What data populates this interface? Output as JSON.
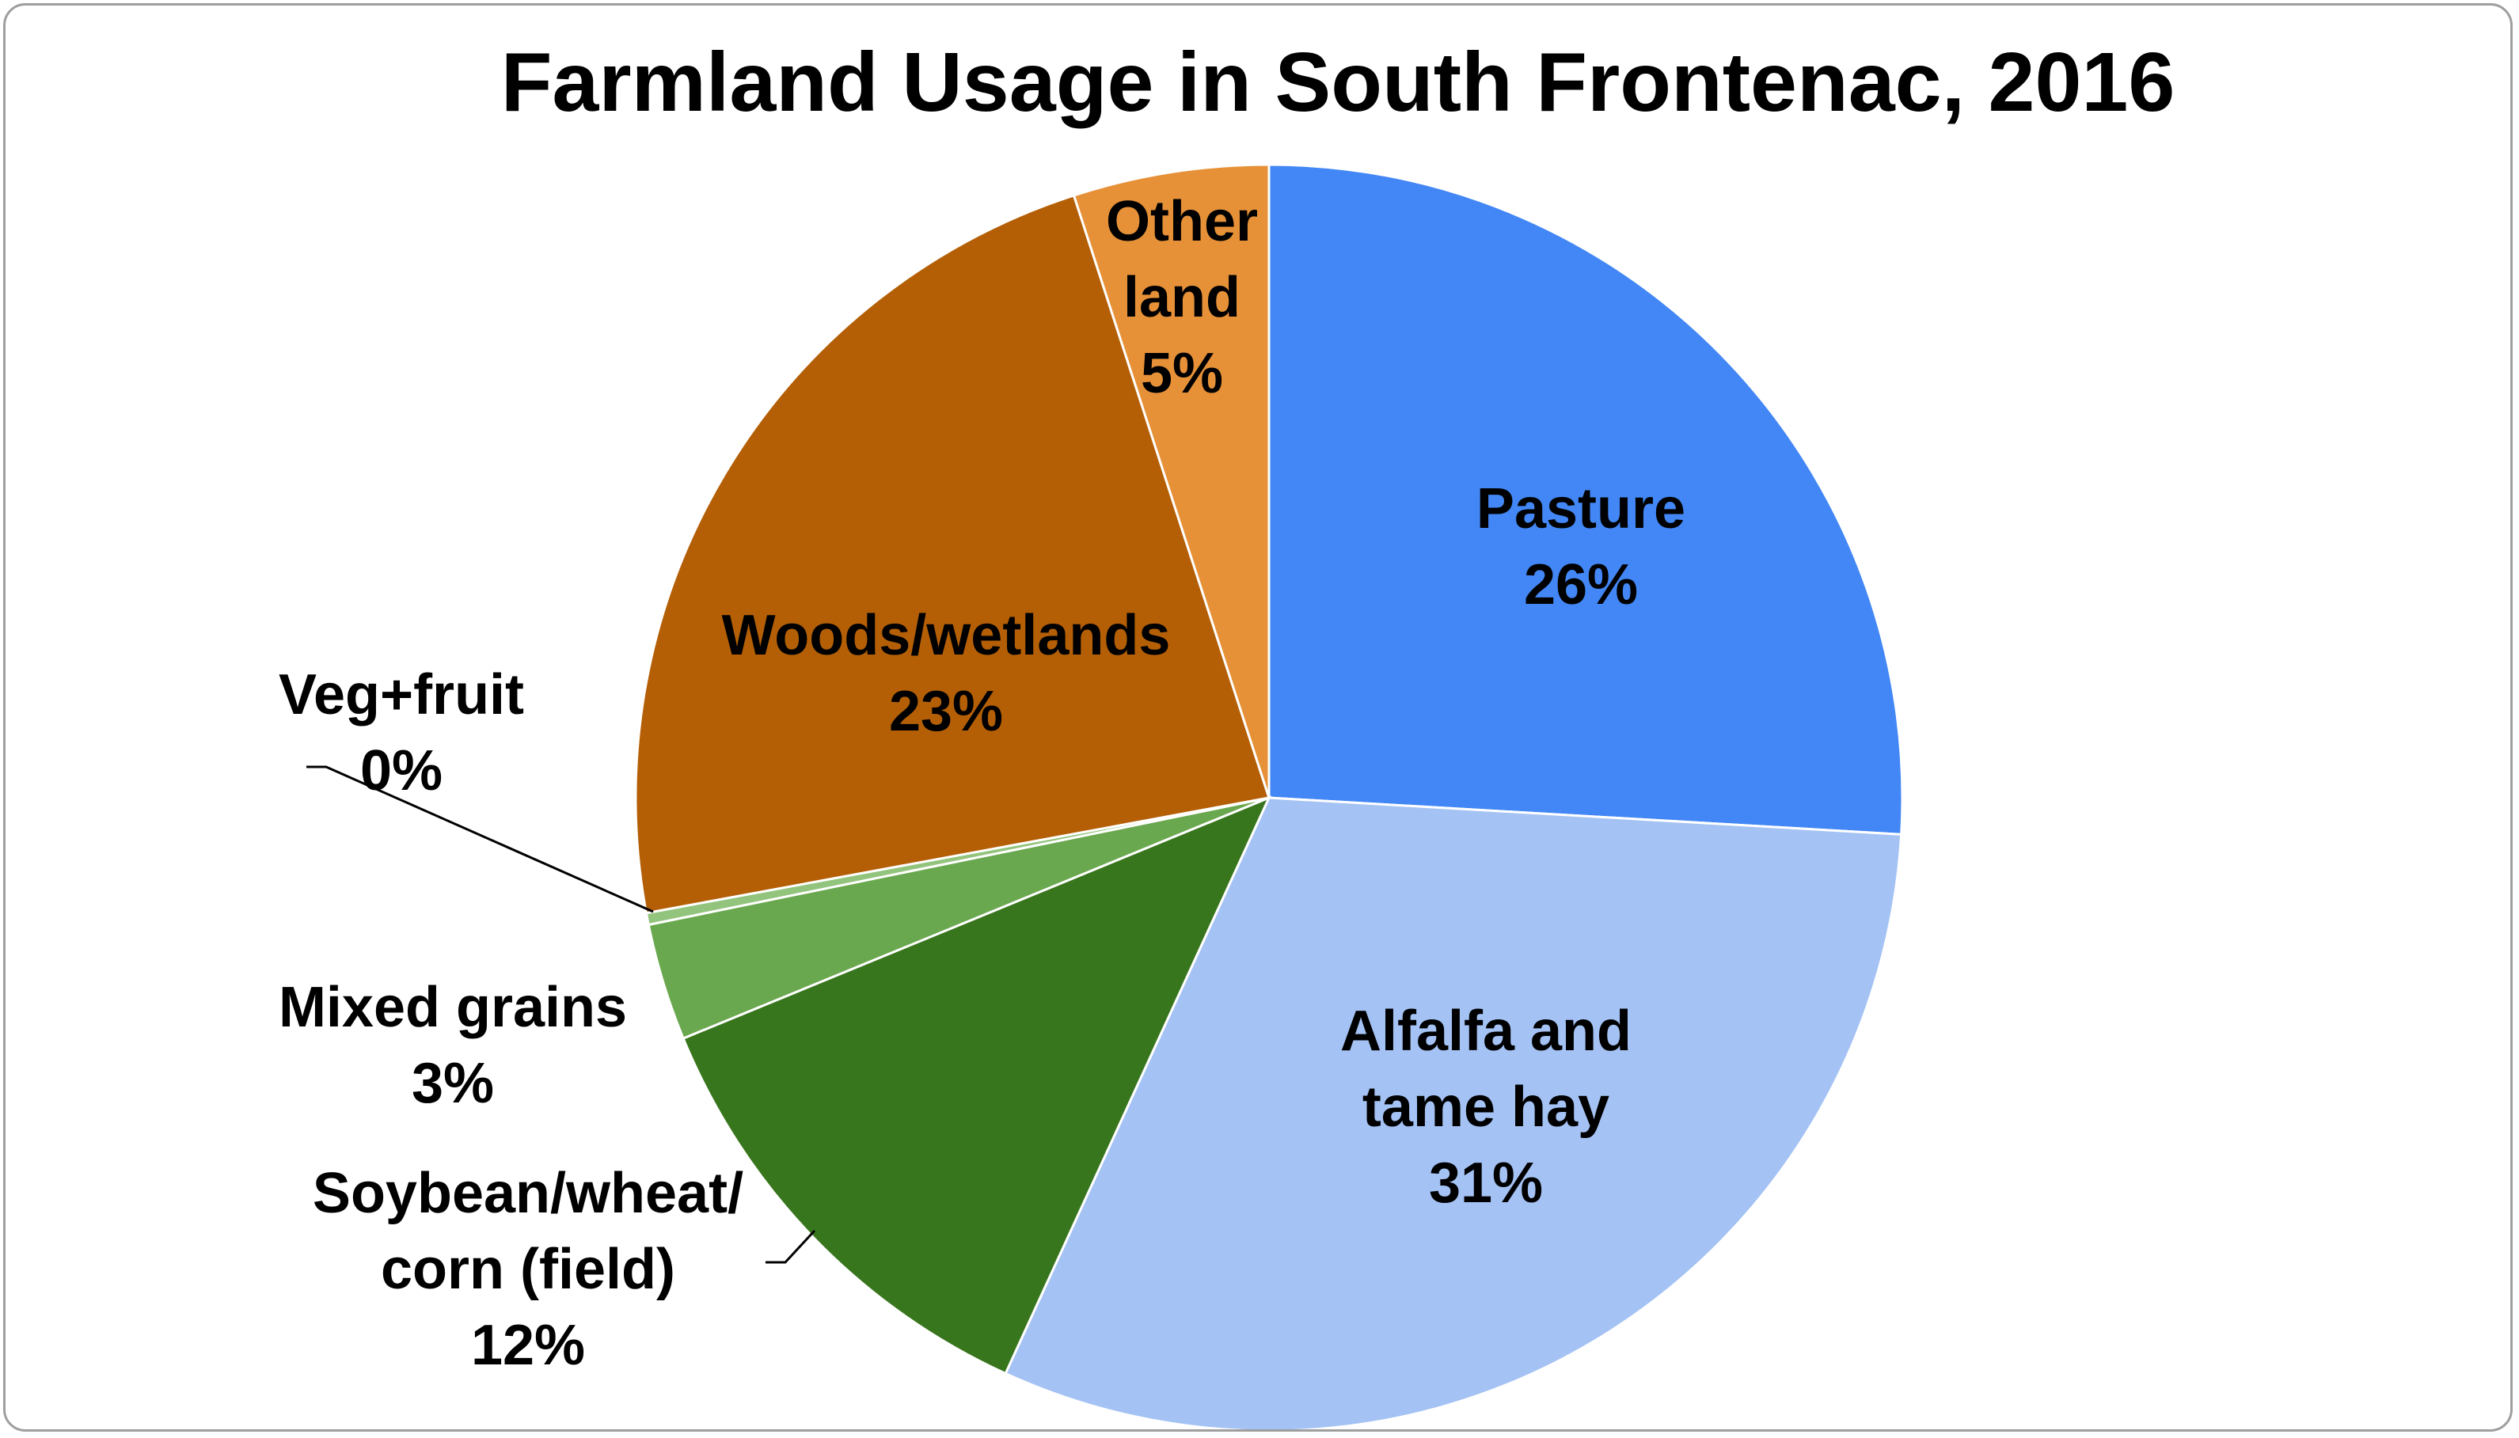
{
  "chart_data": {
    "type": "pie",
    "title": "Farmland Usage in South Frontenac, 2016",
    "start_angle_deg": 0,
    "direction": "clockwise",
    "slices": [
      {
        "name": "Pasture",
        "lines": [
          "Pasture"
        ],
        "value": 26,
        "percent_label": "26%",
        "color": "#4287f5"
      },
      {
        "name": "Alfalfa and tame hay",
        "lines": [
          "Alfalfa and",
          "tame hay"
        ],
        "value": 31,
        "percent_label": "31%",
        "color": "#a4c2f4"
      },
      {
        "name": "Soybean/wheat/corn (field)",
        "lines": [
          "Soybean/wheat/",
          "corn (field)"
        ],
        "value": 12,
        "percent_label": "12%",
        "color": "#38761d"
      },
      {
        "name": "Mixed grains",
        "lines": [
          "Mixed grains"
        ],
        "value": 3,
        "percent_label": "3%",
        "color": "#6aa84f"
      },
      {
        "name": "Veg+fruit",
        "lines": [
          "Veg+fruit"
        ],
        "value": 0.3,
        "percent_label": "0%",
        "color": "#93c47d"
      },
      {
        "name": "Woods/wetlands",
        "lines": [
          "Woods/wetlands"
        ],
        "value": 23,
        "percent_label": "23%",
        "color": "#b45f06"
      },
      {
        "name": "Other land",
        "lines": [
          "Other",
          "land"
        ],
        "value": 5,
        "percent_label": "5%",
        "color": "#e69138"
      }
    ]
  }
}
